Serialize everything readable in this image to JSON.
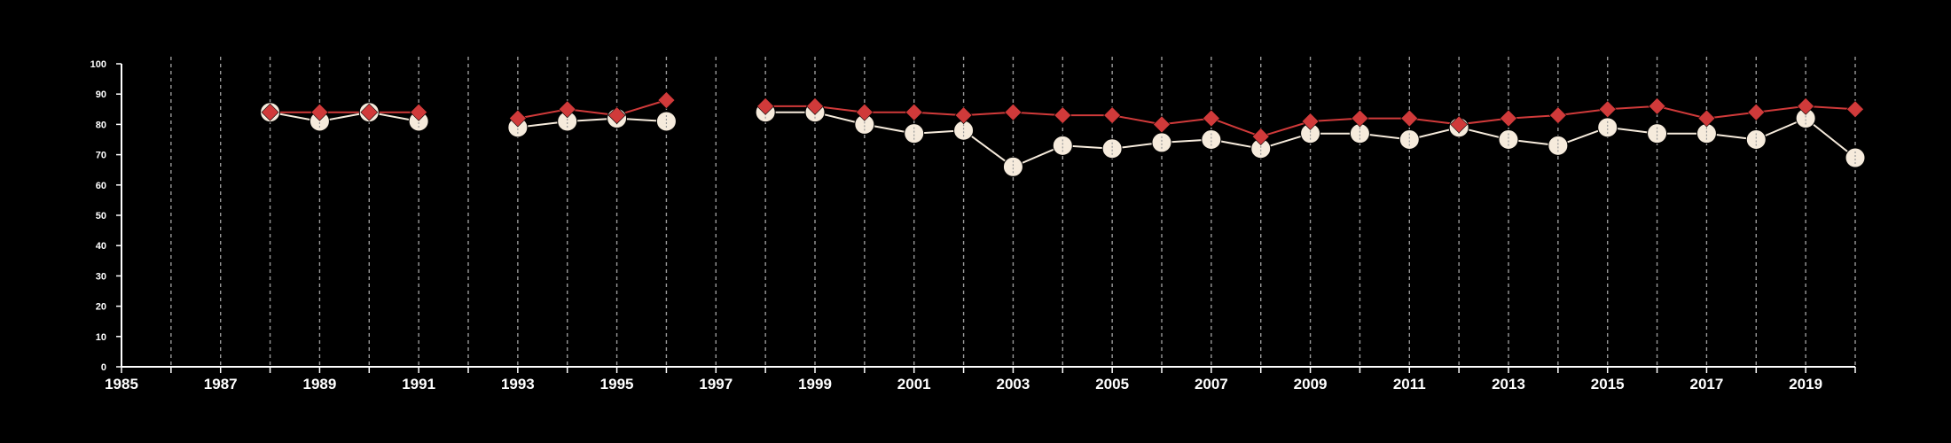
{
  "chart_data": {
    "type": "line",
    "xlim": [
      1985,
      2020
    ],
    "ylim": [
      0,
      100
    ],
    "x_ticks": [
      "1985",
      "1987",
      "1989",
      "1991",
      "1993",
      "1995",
      "1997",
      "1999",
      "2001",
      "2003",
      "2005",
      "2007",
      "2009",
      "2011",
      "2013",
      "2015",
      "2017",
      "2019"
    ],
    "y_ticks": [
      "0",
      "10",
      "20",
      "30",
      "40",
      "50",
      "60",
      "70",
      "80",
      "90",
      "100"
    ],
    "vertical_dashed_gridlines": true,
    "horizontal_gridlines": false,
    "legend": "none",
    "series": [
      {
        "marker": "diamond",
        "color": "#d03a3a",
        "points": [
          [
            1988,
            84
          ],
          [
            1989,
            84
          ],
          [
            1990,
            84
          ],
          [
            1991,
            84
          ],
          [
            1993,
            82
          ],
          [
            1994,
            85
          ],
          [
            1995,
            83
          ],
          [
            1996,
            88
          ],
          [
            1998,
            86
          ],
          [
            1999,
            86
          ],
          [
            2000,
            84
          ],
          [
            2001,
            84
          ],
          [
            2002,
            83
          ],
          [
            2003,
            84
          ],
          [
            2004,
            83
          ],
          [
            2005,
            83
          ],
          [
            2006,
            80
          ],
          [
            2007,
            82
          ],
          [
            2008,
            76
          ],
          [
            2009,
            81
          ],
          [
            2010,
            82
          ],
          [
            2011,
            82
          ],
          [
            2012,
            80
          ],
          [
            2013,
            82
          ],
          [
            2014,
            83
          ],
          [
            2015,
            85
          ],
          [
            2016,
            86
          ],
          [
            2017,
            82
          ],
          [
            2018,
            84
          ],
          [
            2019,
            86
          ],
          [
            2020,
            85
          ]
        ]
      },
      {
        "marker": "circle",
        "color": "#f6ebdc",
        "points": [
          [
            1988,
            84
          ],
          [
            1989,
            81
          ],
          [
            1990,
            84
          ],
          [
            1991,
            81
          ],
          [
            1993,
            79
          ],
          [
            1994,
            81
          ],
          [
            1995,
            82
          ],
          [
            1996,
            81
          ],
          [
            1998,
            84
          ],
          [
            1999,
            84
          ],
          [
            2000,
            80
          ],
          [
            2001,
            77
          ],
          [
            2002,
            78
          ],
          [
            2003,
            66
          ],
          [
            2004,
            73
          ],
          [
            2005,
            72
          ],
          [
            2006,
            74
          ],
          [
            2007,
            75
          ],
          [
            2008,
            72
          ],
          [
            2009,
            77
          ],
          [
            2010,
            77
          ],
          [
            2011,
            75
          ],
          [
            2012,
            79
          ],
          [
            2013,
            75
          ],
          [
            2014,
            73
          ],
          [
            2015,
            79
          ],
          [
            2016,
            77
          ],
          [
            2017,
            77
          ],
          [
            2018,
            75
          ],
          [
            2019,
            82
          ],
          [
            2020,
            69
          ]
        ]
      }
    ]
  }
}
